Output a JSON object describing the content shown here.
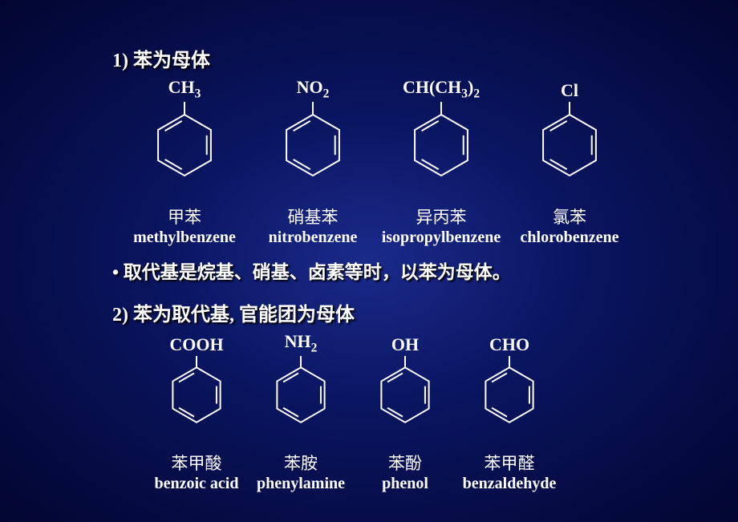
{
  "background": {
    "gradient_center": "#1a2a8a",
    "gradient_mid": "#0a1560",
    "gradient_edge": "#020530"
  },
  "text_color": "#ffffff",
  "ring": {
    "stroke": "#ffffff",
    "stroke_width": 2,
    "outer_r": 38,
    "bond_gap": 6
  },
  "section1": {
    "heading_prefix": "1) ",
    "heading": "苯为母体",
    "mols": [
      {
        "sub_html": "CH<sub>3</sub>",
        "cn": "甲苯",
        "en": "methylbenzene"
      },
      {
        "sub_html": "NO<sub>2</sub>",
        "cn": "硝基苯",
        "en": "nitrobenzene"
      },
      {
        "sub_html": "CH(CH<sub>3</sub>)<sub>2</sub>",
        "cn": "异丙苯",
        "en": "isopropylbenzene"
      },
      {
        "sub_html": "Cl",
        "cn": "氯苯",
        "en": "chlorobenzene"
      }
    ]
  },
  "bullet": "• 取代基是烷基、硝基、卤素等时，以苯为母体。",
  "section2": {
    "heading_prefix": "2) ",
    "heading": "苯为取代基, 官能团为母体",
    "mols": [
      {
        "sub_html": "COOH",
        "cn": "苯甲酸",
        "en": "benzoic acid"
      },
      {
        "sub_html": "NH<sub>2</sub>",
        "cn": "苯胺",
        "en": "phenylamine"
      },
      {
        "sub_html": "OH",
        "cn": "苯酚",
        "en": "phenol"
      },
      {
        "sub_html": "CHO",
        "cn": "苯甲醛",
        "en": "benzaldehyde"
      }
    ]
  }
}
